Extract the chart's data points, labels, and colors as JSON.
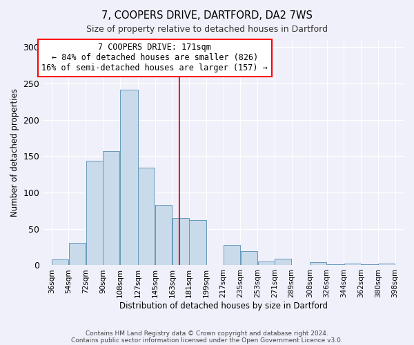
{
  "title": "7, COOPERS DRIVE, DARTFORD, DA2 7WS",
  "subtitle": "Size of property relative to detached houses in Dartford",
  "xlabel": "Distribution of detached houses by size in Dartford",
  "ylabel": "Number of detached properties",
  "bar_color": "#c9daea",
  "bar_edge_color": "#6699bb",
  "background_color": "#f0f0fa",
  "bins": [
    36,
    54,
    72,
    90,
    108,
    127,
    145,
    163,
    181,
    199,
    217,
    235,
    253,
    271,
    289,
    308,
    326,
    344,
    362,
    380,
    398
  ],
  "counts": [
    8,
    31,
    144,
    157,
    241,
    134,
    83,
    65,
    62,
    0,
    28,
    19,
    5,
    9,
    0,
    4,
    1,
    2,
    1,
    2
  ],
  "tick_labels": [
    "36sqm",
    "54sqm",
    "72sqm",
    "90sqm",
    "108sqm",
    "127sqm",
    "145sqm",
    "163sqm",
    "181sqm",
    "199sqm",
    "217sqm",
    "235sqm",
    "253sqm",
    "271sqm",
    "289sqm",
    "308sqm",
    "326sqm",
    "344sqm",
    "362sqm",
    "380sqm",
    "398sqm"
  ],
  "vline_x": 171,
  "vline_color": "red",
  "annotation_title": "7 COOPERS DRIVE: 171sqm",
  "annotation_line1": "← 84% of detached houses are smaller (826)",
  "annotation_line2": "16% of semi-detached houses are larger (157) →",
  "ylim": [
    0,
    310
  ],
  "yticks": [
    0,
    50,
    100,
    150,
    200,
    250,
    300
  ],
  "footer1": "Contains HM Land Registry data © Crown copyright and database right 2024.",
  "footer2": "Contains public sector information licensed under the Open Government Licence v3.0."
}
